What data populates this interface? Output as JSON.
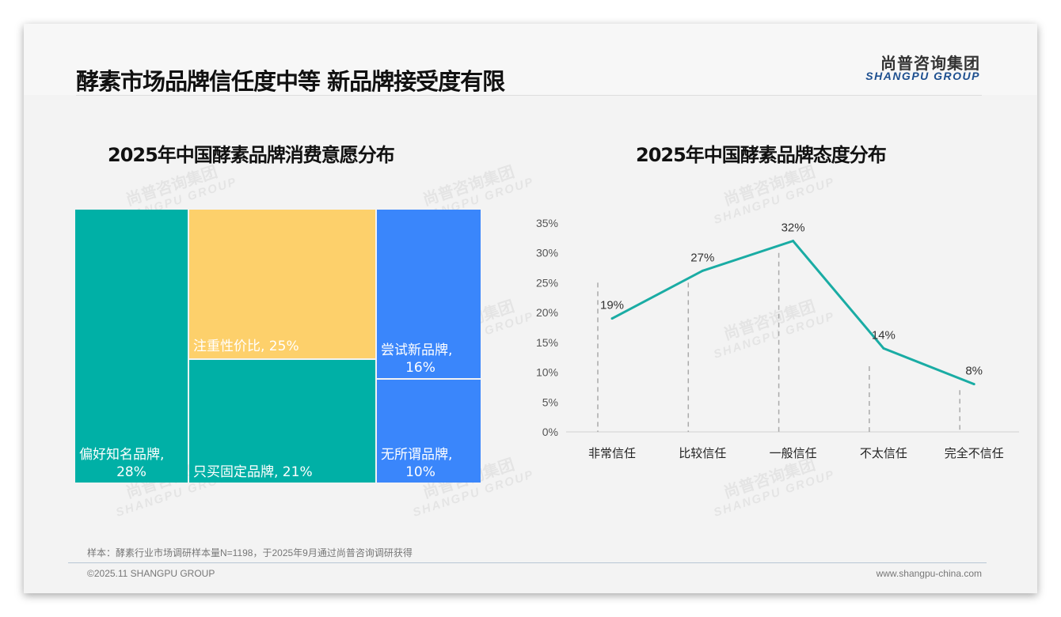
{
  "header": {
    "title": "酵素市场品牌信任度中等 新品牌接受度有限",
    "logo_cn": "尚普咨询集团",
    "logo_en": "SHANGPU GROUP"
  },
  "watermark": {
    "cn": "尚普咨询集团",
    "en": "SHANGPU GROUP"
  },
  "colors": {
    "teal": "#00b0a6",
    "yellow": "#fdd06b",
    "blue": "#3a86fb",
    "line": "#1aaca4"
  },
  "chart_data": [
    {
      "type": "treemap",
      "title": "2025年中国酵素品牌消费意愿分布",
      "items": [
        {
          "label": "偏好知名品牌,",
          "value": "28%",
          "pct": 28,
          "color": "#00b0a6"
        },
        {
          "label": "注重性价比, 25%",
          "value": "",
          "pct": 25,
          "color": "#fdd06b"
        },
        {
          "label": "只买固定品牌, 21%",
          "value": "",
          "pct": 21,
          "color": "#00b0a6"
        },
        {
          "label": "尝试新品牌,",
          "value": "16%",
          "pct": 16,
          "color": "#3a86fb"
        },
        {
          "label": "无所谓品牌,",
          "value": "10%",
          "pct": 10,
          "color": "#3a86fb"
        }
      ]
    },
    {
      "type": "line",
      "title": "2025年中国酵素品牌态度分布",
      "categories": [
        "非常信任",
        "比较信任",
        "一般信任",
        "不太信任",
        "完全不信任"
      ],
      "values": [
        19,
        27,
        32,
        14,
        8
      ],
      "labels": [
        "19%",
        "27%",
        "32%",
        "14%",
        "8%"
      ],
      "yticks": [
        "0%",
        "5%",
        "10%",
        "15%",
        "20%",
        "25%",
        "30%",
        "35%"
      ],
      "ylim": [
        0,
        35
      ],
      "grid": false
    }
  ],
  "footer": {
    "note": "样本：酵素行业市场调研样本量N=1198，于2025年9月通过尚普咨询调研获得",
    "copyright": "©2025.11 SHANGPU GROUP",
    "url": "www.shangpu-china.com"
  }
}
